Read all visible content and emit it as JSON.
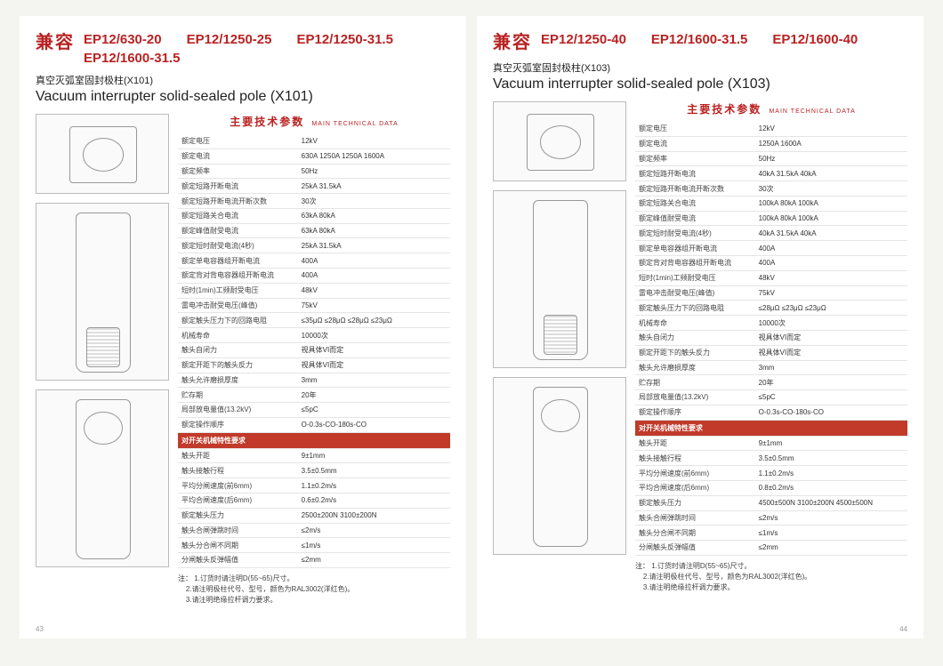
{
  "colors": {
    "brand_red": "#b92222",
    "section_red": "#c13a2a",
    "page_bg": "#ffffff",
    "body_bg": "#f4f4f0",
    "rule": "#e5e5e5",
    "text": "#333333"
  },
  "left": {
    "compat_label": "兼容",
    "models": [
      "EP12/630-20",
      "EP12/1250-25",
      "EP12/1250-31.5",
      "EP12/1600-31.5"
    ],
    "subtitle_cn": "真空灭弧室固封极柱(X101)",
    "subtitle_en": "Vacuum interrupter solid-sealed pole (X101)",
    "spec_title_cn": "主要技术参数",
    "spec_title_en": "MAIN TECHNICAL DATA",
    "rows": [
      {
        "k": "额定电压",
        "v": "12kV"
      },
      {
        "k": "额定电流",
        "v": "630A   1250A   1250A   1600A"
      },
      {
        "k": "额定频率",
        "v": "50Hz"
      },
      {
        "k": "额定短路开断电流",
        "v": "25kA   31.5kA"
      },
      {
        "k": "额定短路开断电流开断次数",
        "v": "30次"
      },
      {
        "k": "额定短路关合电流",
        "v": "63kA   80kA"
      },
      {
        "k": "额定峰值耐受电流",
        "v": "63kA   80kA"
      },
      {
        "k": "额定短时耐受电流(4秒)",
        "v": "25kA   31.5kA"
      },
      {
        "k": "额定单电容器组开断电流",
        "v": "400A"
      },
      {
        "k": "额定背对背电容器组开断电流",
        "v": "400A"
      },
      {
        "k": "短时(1min)工频耐受电压",
        "v": "48kV"
      },
      {
        "k": "雷电冲击耐受电压(峰值)",
        "v": "75kV"
      },
      {
        "k": "额定触头压力下的回路电阻",
        "v": "≤35μΩ  ≤28μΩ  ≤28μΩ  ≤23μΩ"
      },
      {
        "k": "机械寿命",
        "v": "10000次"
      },
      {
        "k": "触头自闭力",
        "v": "视具体VI而定"
      },
      {
        "k": "额定开距下的触头反力",
        "v": "视具体VI而定"
      },
      {
        "k": "触头允许磨损厚度",
        "v": "3mm"
      },
      {
        "k": "贮存期",
        "v": "20年"
      },
      {
        "k": "局部放电量值(13.2kV)",
        "v": "≤5pC"
      },
      {
        "k": "额定操作顺序",
        "v": "O-0.3s-CO-180s-CO"
      }
    ],
    "section_label": "对开关机械特性要求",
    "rows2": [
      {
        "k": "触头开距",
        "v": "9±1mm"
      },
      {
        "k": "触头接触行程",
        "v": "3.5±0.5mm"
      },
      {
        "k": "平均分闸速度(前6mm)",
        "v": "1.1±0.2m/s"
      },
      {
        "k": "平均合闸速度(后6mm)",
        "v": "0.6±0.2m/s"
      },
      {
        "k": "额定触头压力",
        "v": "2500±200N   3100±200N"
      },
      {
        "k": "触头合闸弹跳时间",
        "v": "≤2m/s"
      },
      {
        "k": "触头分合闸不同期",
        "v": "≤1m/s"
      },
      {
        "k": "分闸触头反弹幅值",
        "v": "≤2mm"
      }
    ],
    "notes_label": "注：",
    "notes": [
      "1.订货时请注明D(55~65)尺寸。",
      "2.请注明极柱代号、型号，颜色为RAL3002(洋红色)。",
      "3.请注明绝缘拉杆调力要求。"
    ],
    "page_num": "43"
  },
  "right": {
    "compat_label": "兼容",
    "models": [
      "EP12/1250-40",
      "EP12/1600-31.5",
      "EP12/1600-40"
    ],
    "subtitle_cn": "真空灭弧室固封极柱(X103)",
    "subtitle_en": "Vacuum interrupter solid-sealed pole (X103)",
    "spec_title_cn": "主要技术参数",
    "spec_title_en": "MAIN TECHNICAL DATA",
    "rows": [
      {
        "k": "额定电压",
        "v": "12kV"
      },
      {
        "k": "额定电流",
        "v": "1250A   1600A"
      },
      {
        "k": "额定频率",
        "v": "50Hz"
      },
      {
        "k": "额定短路开断电流",
        "v": "40kA   31.5kA   40kA"
      },
      {
        "k": "额定短路开断电流开断次数",
        "v": "30次"
      },
      {
        "k": "额定短路关合电流",
        "v": "100kA   80kA   100kA"
      },
      {
        "k": "额定峰值耐受电流",
        "v": "100kA   80kA   100kA"
      },
      {
        "k": "额定短时耐受电流(4秒)",
        "v": "40kA   31.5kA   40kA"
      },
      {
        "k": "额定单电容器组开断电流",
        "v": "400A"
      },
      {
        "k": "额定背对背电容器组开断电流",
        "v": "400A"
      },
      {
        "k": "短时(1min)工频耐受电压",
        "v": "48kV"
      },
      {
        "k": "雷电冲击耐受电压(峰值)",
        "v": "75kV"
      },
      {
        "k": "额定触头压力下的回路电阻",
        "v": "≤28μΩ  ≤23μΩ  ≤23μΩ"
      },
      {
        "k": "机械寿命",
        "v": "10000次"
      },
      {
        "k": "触头自闭力",
        "v": "视具体VI而定"
      },
      {
        "k": "额定开距下的触头反力",
        "v": "视具体VI而定"
      },
      {
        "k": "触头允许磨损厚度",
        "v": "3mm"
      },
      {
        "k": "贮存期",
        "v": "20年"
      },
      {
        "k": "局部放电量值(13.2kV)",
        "v": "≤5pC"
      },
      {
        "k": "额定操作顺序",
        "v": "O-0.3s-CO-180s-CO"
      }
    ],
    "section_label": "对开关机械特性要求",
    "rows2": [
      {
        "k": "触头开距",
        "v": "9±1mm"
      },
      {
        "k": "触头接触行程",
        "v": "3.5±0.5mm"
      },
      {
        "k": "平均分闸速度(前6mm)",
        "v": "1.1±0.2m/s"
      },
      {
        "k": "平均合闸速度(后6mm)",
        "v": "0.8±0.2m/s"
      },
      {
        "k": "额定触头压力",
        "v": "4500±500N 3100±200N 4500±500N"
      },
      {
        "k": "触头合闸弹跳时间",
        "v": "≤2m/s"
      },
      {
        "k": "触头分合闸不同期",
        "v": "≤1m/s"
      },
      {
        "k": "分闸触头反弹幅值",
        "v": "≤2mm"
      }
    ],
    "notes_label": "注：",
    "notes": [
      "1.订货时请注明D(55~65)尺寸。",
      "2.请注明极柱代号、型号，颜色为RAL3002(洋红色)。",
      "3.请注明绝缘拉杆调力要求。"
    ],
    "page_num": "44"
  }
}
